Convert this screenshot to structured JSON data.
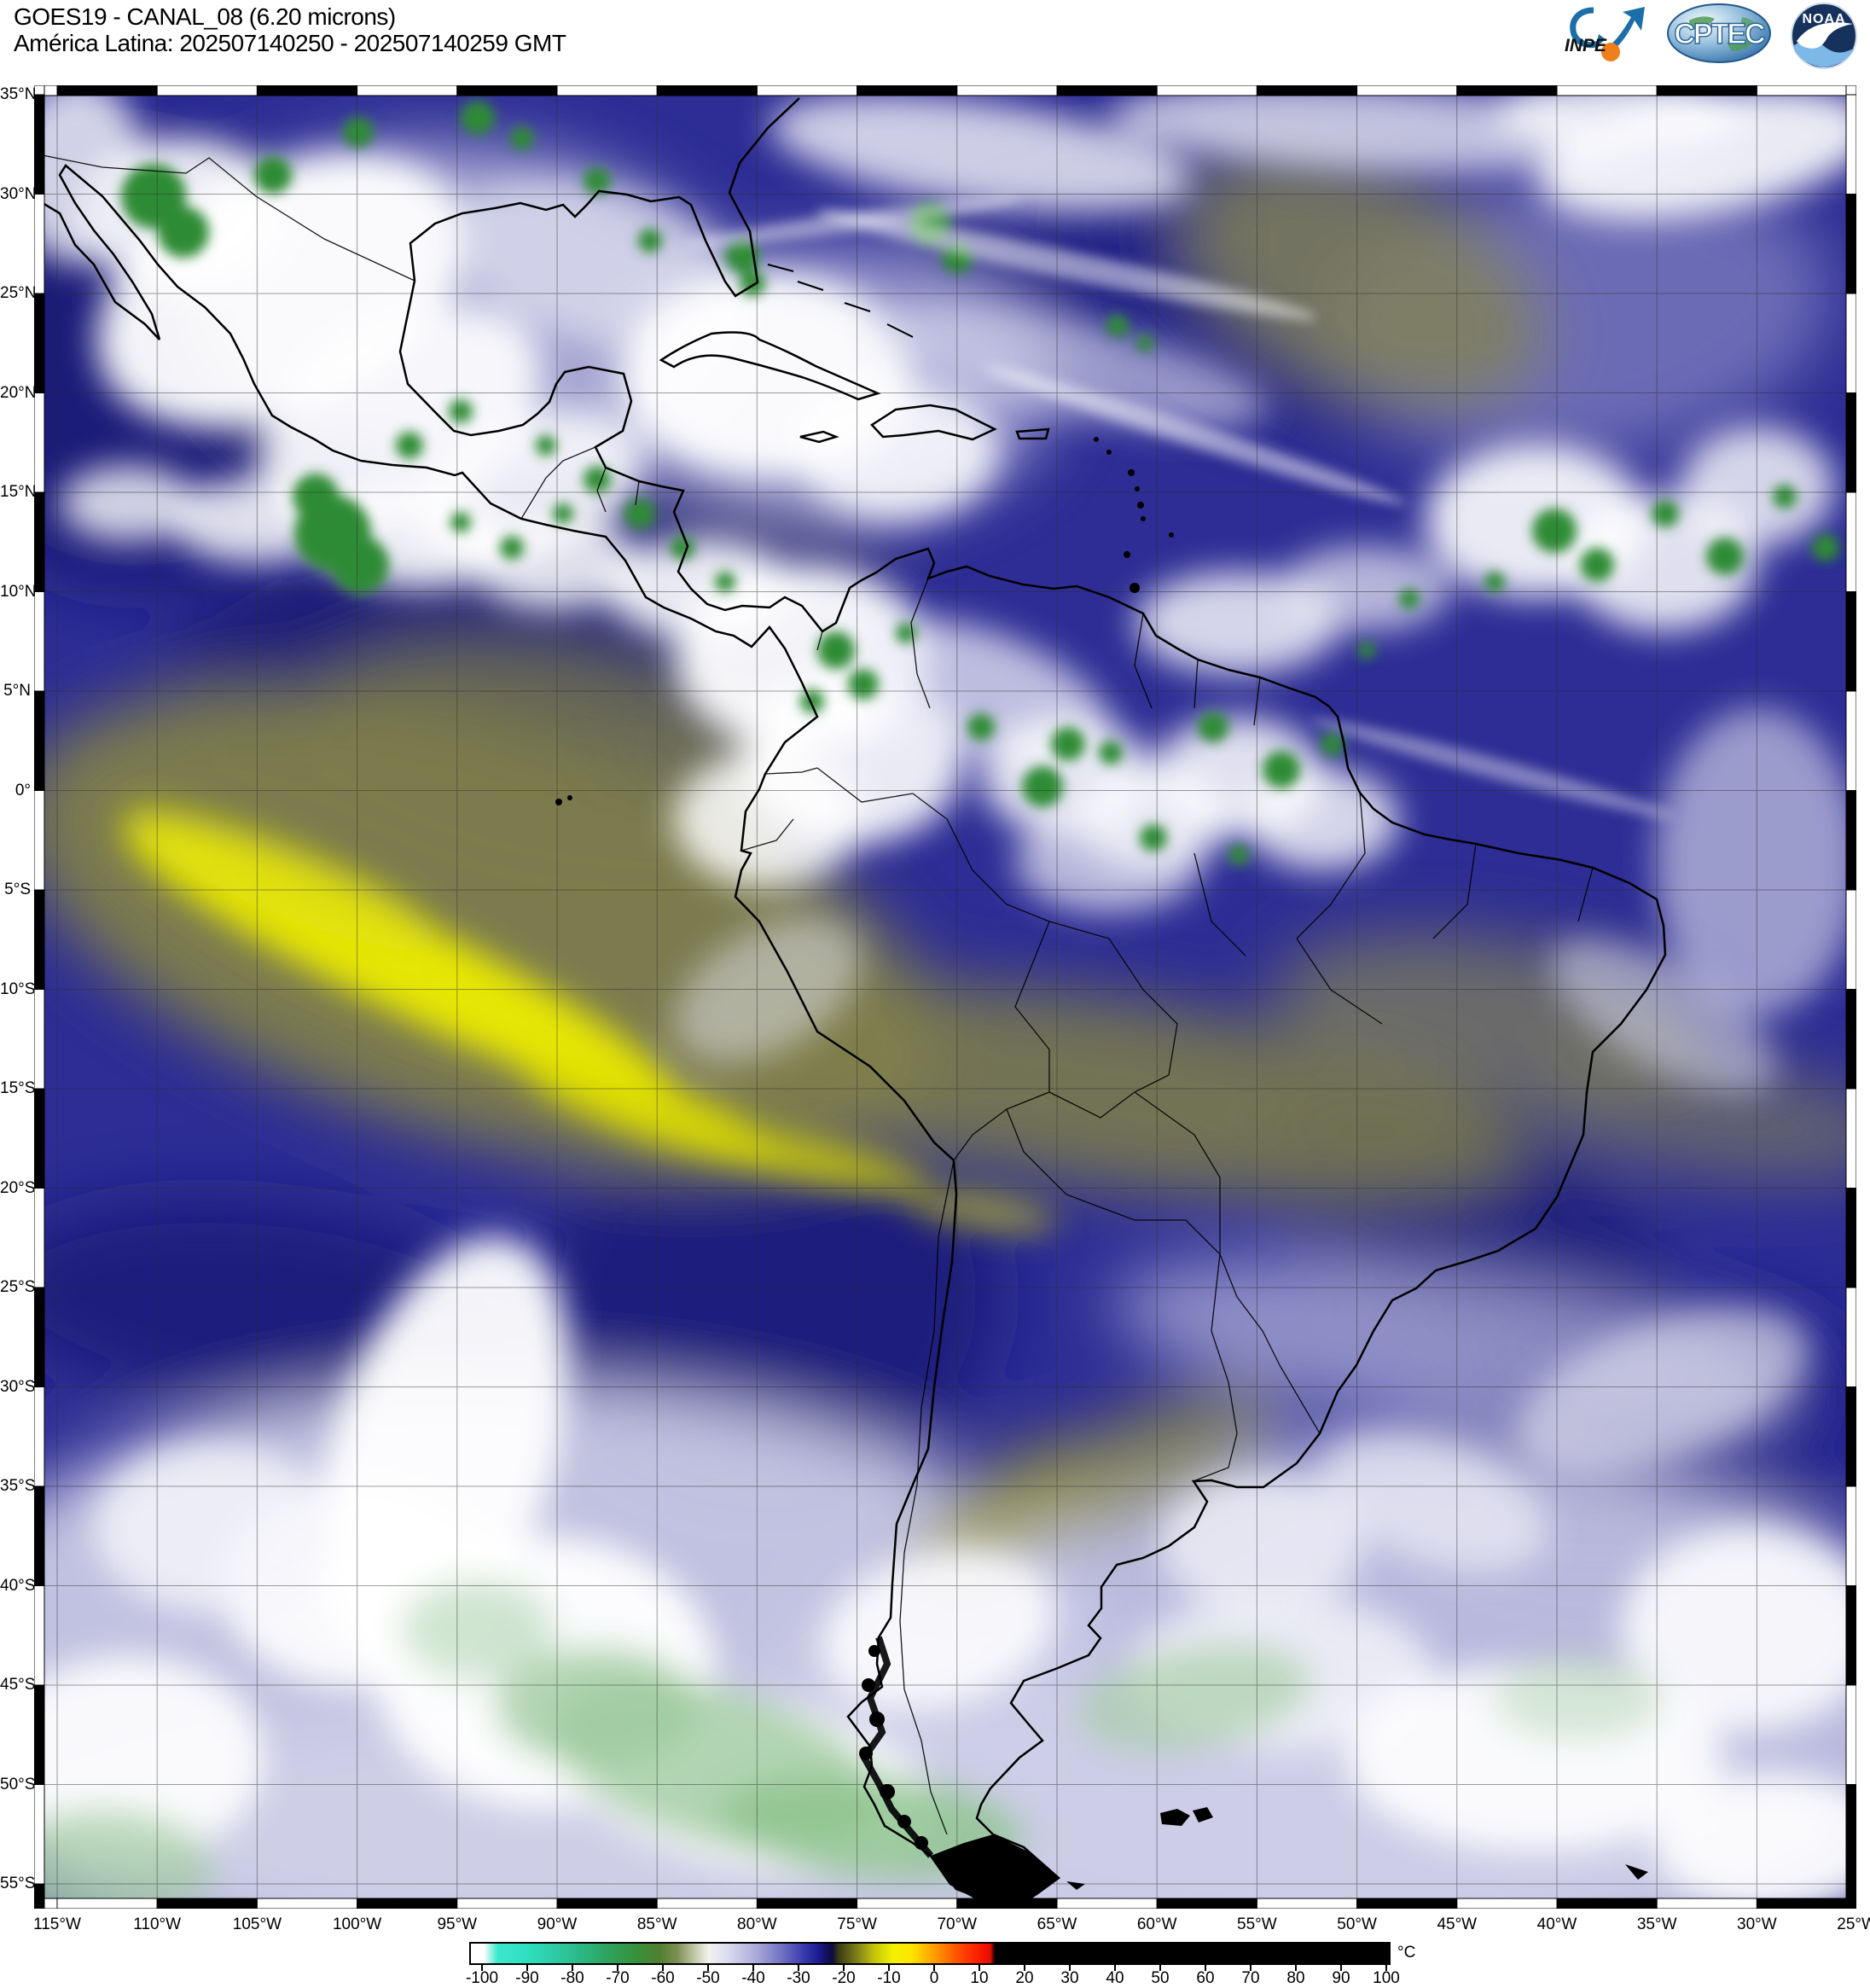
{
  "header": {
    "title_line1": "GOES19 - CANAL_08 (6.20 microns)",
    "title_line2": "América Latina: 202507140250 - 202507140259 GMT"
  },
  "logos": {
    "inpe_label": "INPE",
    "cptec_label": "CPTEC",
    "noaa_label": "NOAA"
  },
  "map": {
    "lat_labels": [
      "35°N",
      "30°N",
      "25°N",
      "20°N",
      "15°N",
      "10°N",
      "5°N",
      "0°",
      "5°S",
      "10°S",
      "15°S",
      "20°S",
      "25°S",
      "30°S",
      "35°S",
      "40°S",
      "45°S",
      "50°S",
      "55°S"
    ],
    "lon_labels": [
      "115°W",
      "110°W",
      "105°W",
      "100°W",
      "95°W",
      "90°W",
      "85°W",
      "80°W",
      "75°W",
      "70°W",
      "65°W",
      "60°W",
      "55°W",
      "50°W",
      "45°W",
      "40°W",
      "35°W",
      "30°W",
      "25°W"
    ]
  },
  "colorbar": {
    "unit": "°C",
    "tick_labels": [
      "-100",
      "-90",
      "-80",
      "-70",
      "-60",
      "-50",
      "-40",
      "-30",
      "-20",
      "-10",
      "0",
      "10",
      "20",
      "30",
      "40",
      "50",
      "60",
      "70",
      "80",
      "90",
      "100"
    ]
  },
  "colors": {
    "moist_deep_blue": "#2d2d95",
    "dark_dry_navy": "#171770",
    "cloud_white": "#ffffff",
    "cold_cloud_green": "#2f8b36",
    "pale_green": "#9fcb9f",
    "dry_olive": "#7f7f4b",
    "jet_yellow": "#ecec00",
    "land_outline": "#000000",
    "lavender": "#c9c9e5"
  }
}
